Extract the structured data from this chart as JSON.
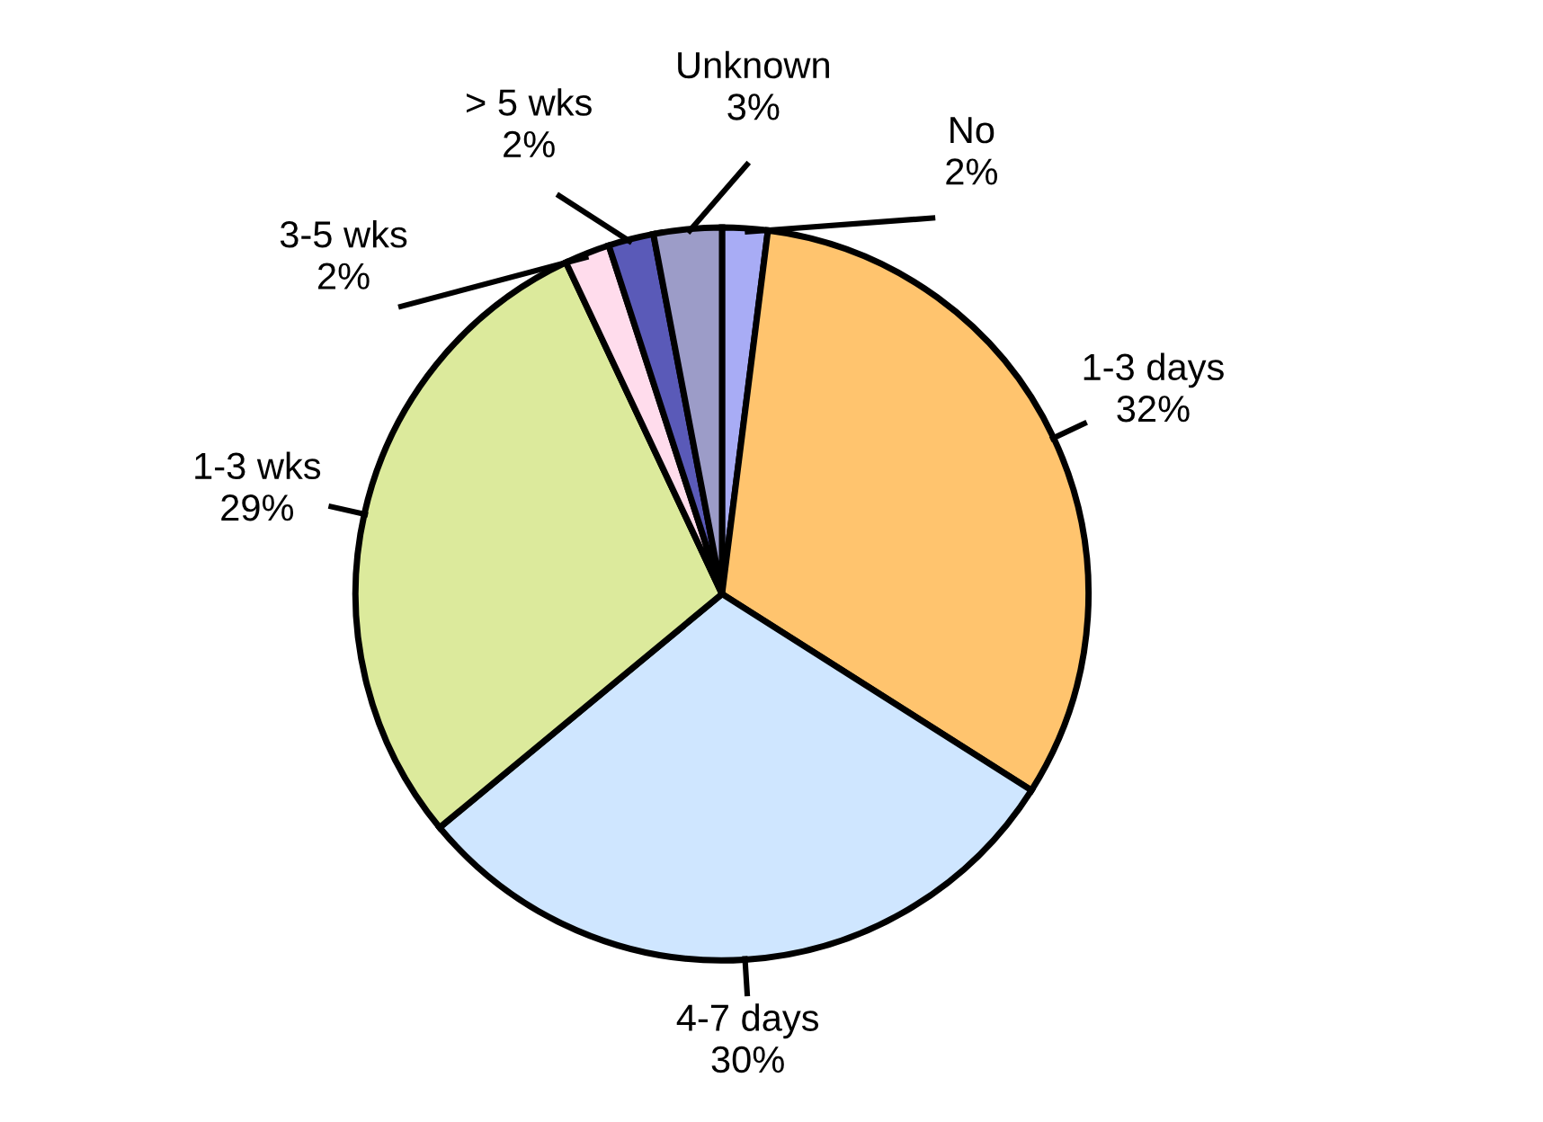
{
  "chart_data": {
    "type": "pie",
    "categories": [
      "No",
      "1-3 days",
      "4-7 days",
      "1-3 wks",
      "3-5 wks",
      "> 5 wks",
      "Unknown"
    ],
    "values": [
      2,
      32,
      30,
      29,
      2,
      2,
      3
    ],
    "colors": [
      "#a8acf5",
      "#ffc46e",
      "#cfe6ff",
      "#dcea9c",
      "#ffdcec",
      "#5a5ab8",
      "#9c9cc8"
    ],
    "value_labels": [
      "2%",
      "32%",
      "30%",
      "29%",
      "2%",
      "2%",
      "3%"
    ]
  }
}
